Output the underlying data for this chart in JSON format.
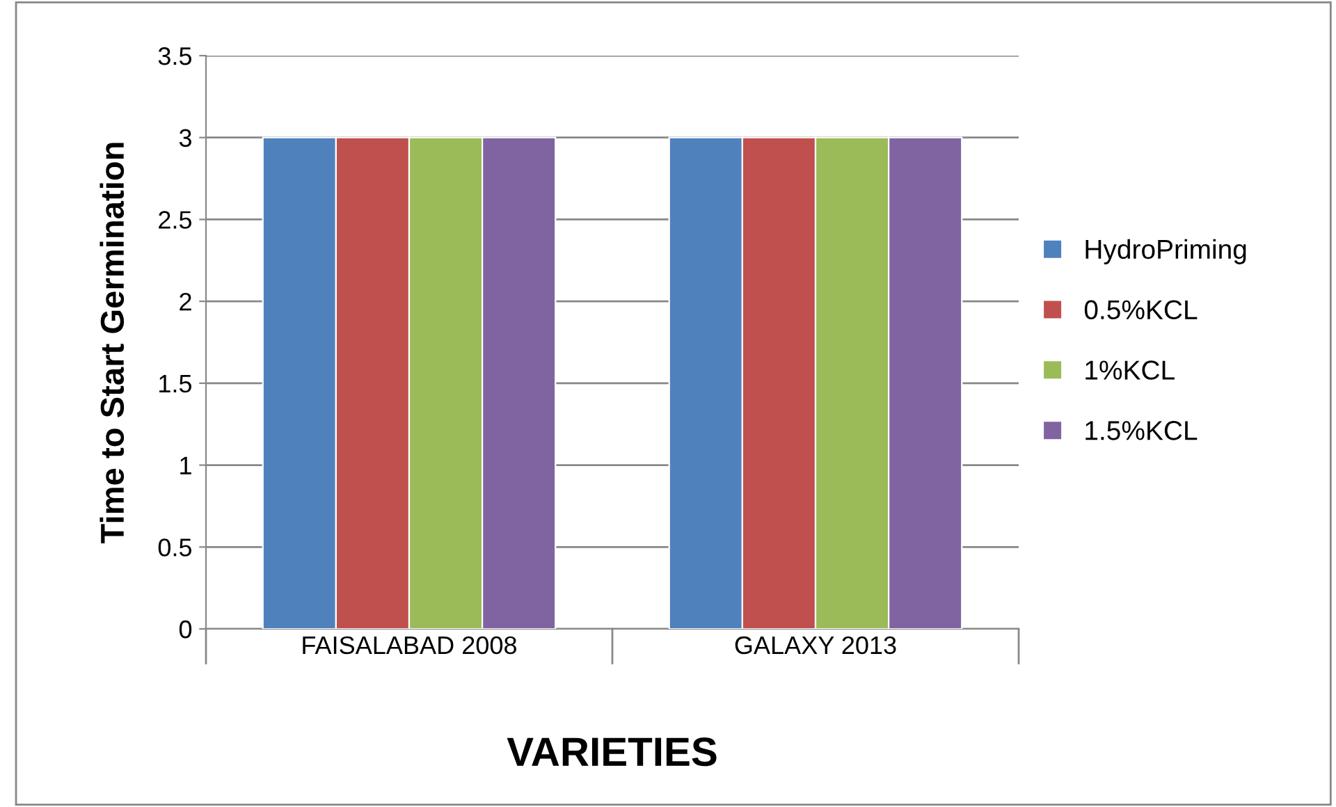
{
  "chart_data": {
    "type": "bar",
    "xlabel": "VARIETIES",
    "ylabel": "Time to Start Germination",
    "categories": [
      "FAISALABAD 2008",
      "GALAXY 2013"
    ],
    "series": [
      {
        "name": "HydroPriming",
        "color": "#4f81bd",
        "values": [
          3,
          3
        ]
      },
      {
        "name": "0.5%KCL",
        "color": "#c0504d",
        "values": [
          3,
          3
        ]
      },
      {
        "name": "1%KCL",
        "color": "#9bbb59",
        "values": [
          3,
          3
        ]
      },
      {
        "name": "1.5%KCL",
        "color": "#8064a2",
        "values": [
          3,
          3
        ]
      }
    ],
    "ylim": [
      0,
      3.5
    ],
    "yticks": [
      0,
      0.5,
      1,
      1.5,
      2,
      2.5,
      3,
      3.5
    ],
    "grid": "y",
    "legend": "right"
  }
}
